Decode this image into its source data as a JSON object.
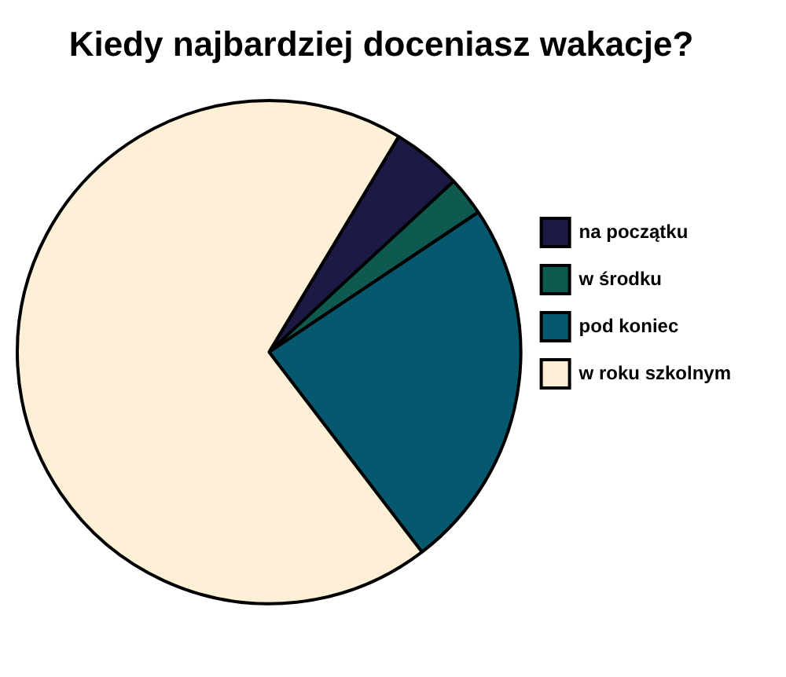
{
  "chart_data": {
    "type": "pie",
    "title": "Kiedy najbardziej doceniasz wakacje?",
    "categories": [
      "na początku",
      "w środku",
      "pod koniec",
      "w roku szkolnym"
    ],
    "values": [
      4.5,
      2.5,
      24,
      69
    ],
    "colors": [
      "#1c1a44",
      "#0e5a50",
      "#05586e",
      "#fdf0d6"
    ],
    "legend": "right"
  }
}
